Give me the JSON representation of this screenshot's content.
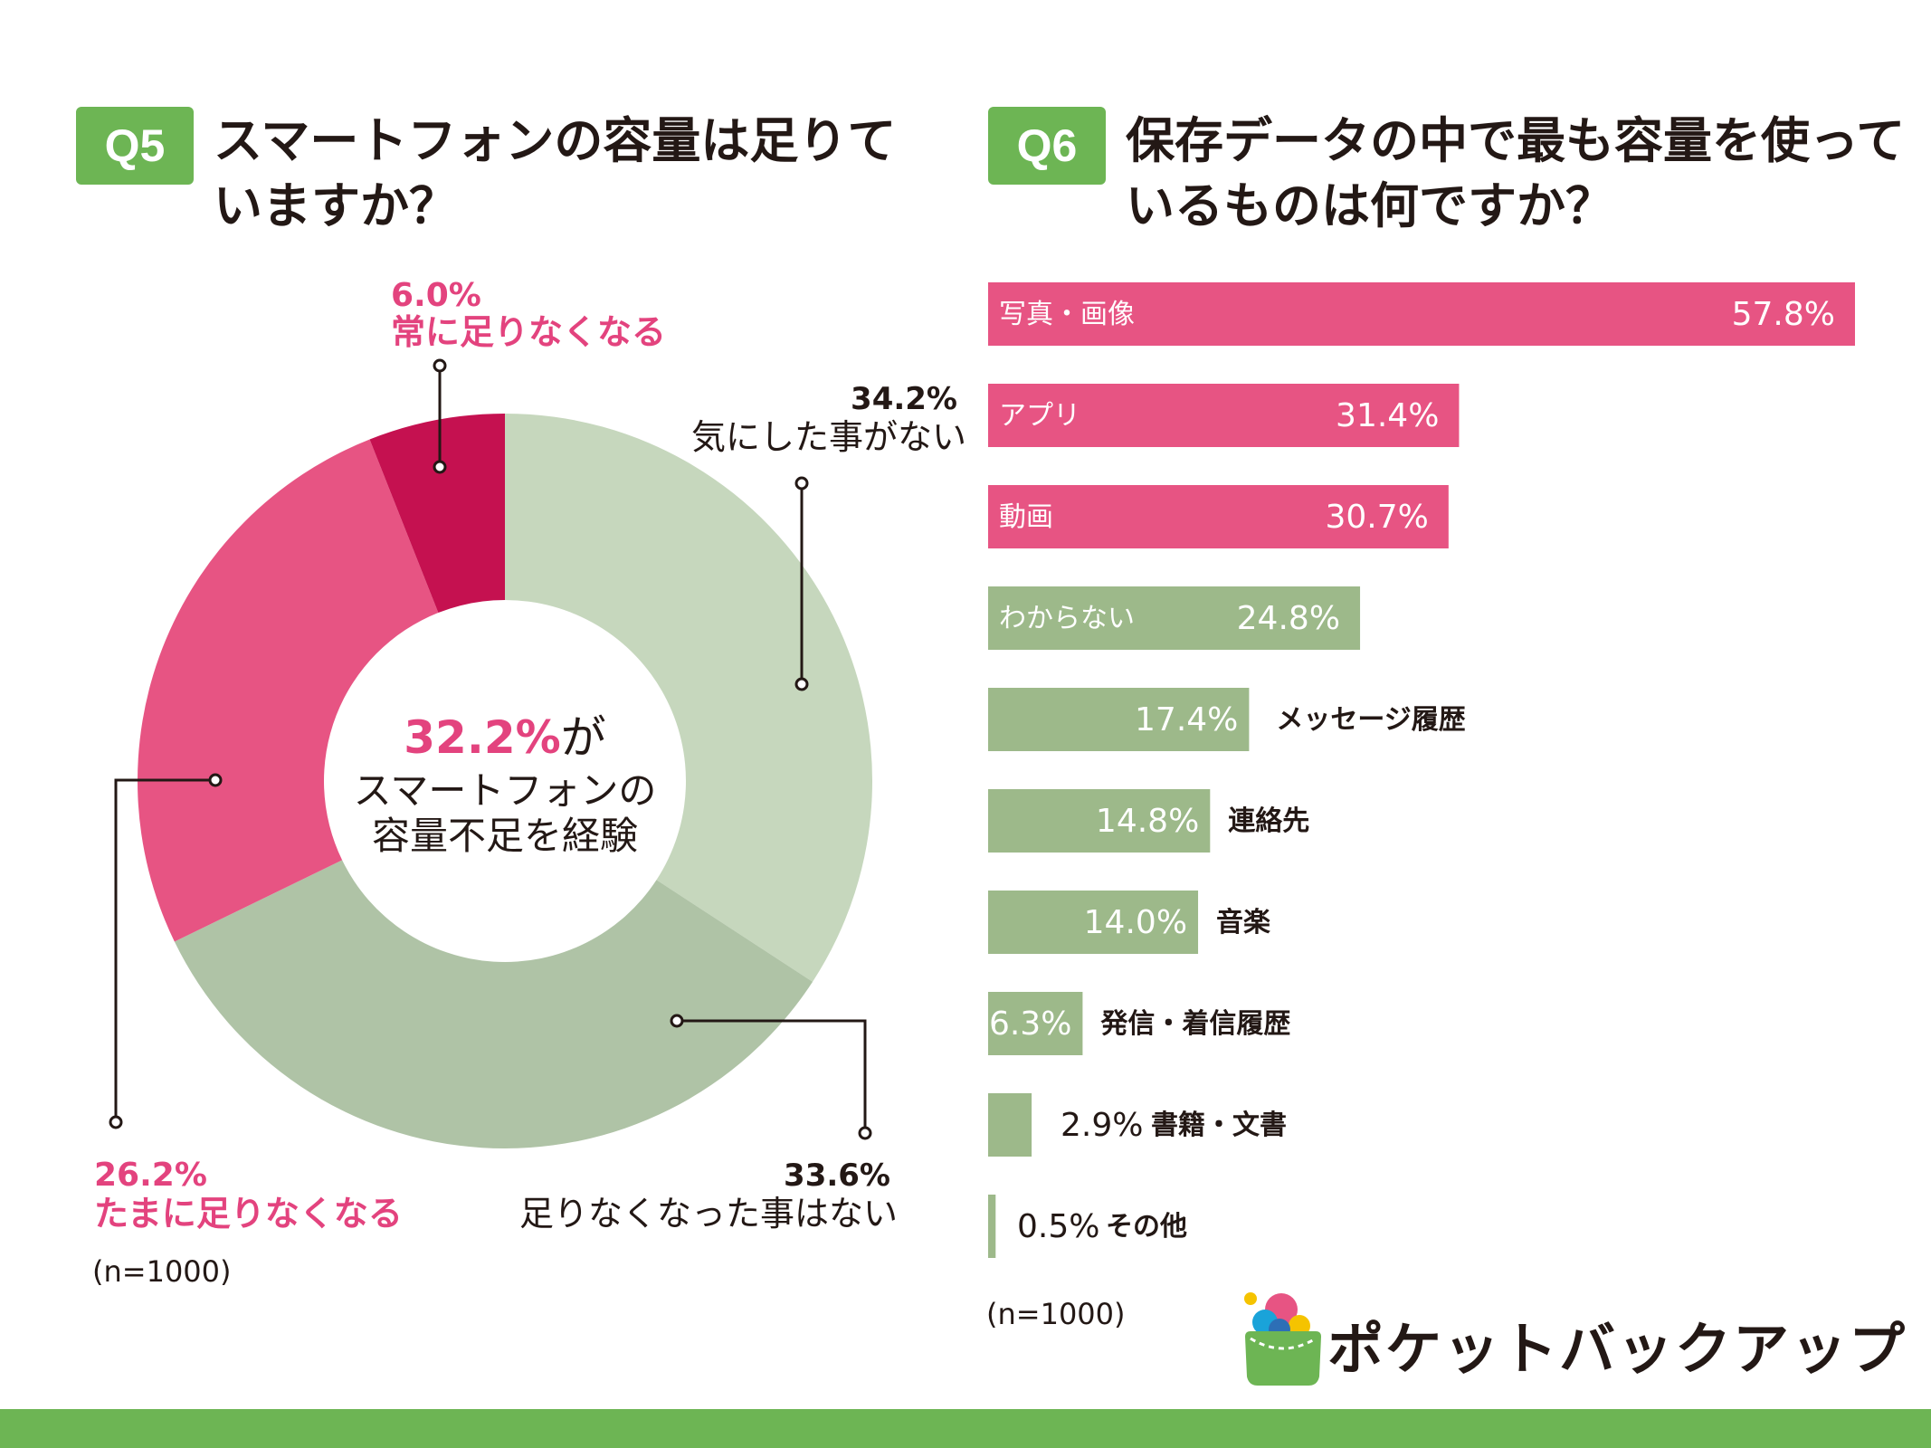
{
  "q5": {
    "badge": "Q5",
    "title_lines": [
      "スマートフォンの容量は足りて",
      "いますか？"
    ],
    "center_highlight": "32.2%",
    "center_suffix": "が",
    "center_lines": [
      "スマートフォンの",
      "容量不足を経験"
    ],
    "n_label": "(n=1000)"
  },
  "q6": {
    "badge": "Q6",
    "title_lines": [
      "保存データの中で最も容量を使って",
      "いるものは何ですか？"
    ],
    "n_label": "(n=1000)"
  },
  "brand": {
    "name": "ポケットバックアップ"
  },
  "colors": {
    "green_brand": "#6db554",
    "pink_bar": "#e75483",
    "pink_text": "#e3437e",
    "crimson": "#c51150",
    "green_bar": "#9db98a",
    "pie_light_green": "#c6d7bd",
    "pie_mid_green": "#afc3a6"
  },
  "chart_data": [
    {
      "type": "pie",
      "variant": "donut",
      "title": "スマートフォンの容量は足りていますか？",
      "unit": "%",
      "slices": [
        {
          "label": "気にした事がない",
          "value": 34.2,
          "color": "#c6d7bd",
          "label_color": "#231815"
        },
        {
          "label": "足りなくなった事はない",
          "value": 33.6,
          "color": "#afc3a6",
          "label_color": "#231815"
        },
        {
          "label": "たまに足りなくなる",
          "value": 26.2,
          "color": "#e75483",
          "label_color": "#e3437e"
        },
        {
          "label": "常に足りなくなる",
          "value": 6.0,
          "color": "#c51150",
          "label_color": "#e3437e"
        }
      ],
      "start_angle_deg": 0,
      "direction": "clockwise"
    },
    {
      "type": "bar",
      "orientation": "horizontal",
      "title": "保存データの中で最も容量を使っているものは何ですか？",
      "unit": "%",
      "categories": [
        "写真・画像",
        "アプリ",
        "動画",
        "わからない",
        "メッセージ履歴",
        "連絡先",
        "音楽",
        "発信・着信履歴",
        "書籍・文書",
        "その他"
      ],
      "values": [
        57.8,
        31.4,
        30.7,
        24.8,
        17.4,
        14.8,
        14.0,
        6.3,
        2.9,
        0.5
      ],
      "value_labels": [
        "57.8%",
        "31.4%",
        "30.7%",
        "24.8%",
        "17.4%",
        "14.8%",
        "14.0%",
        "6.3%",
        "2.9%",
        "0.5%"
      ],
      "bar_colors": [
        "#e75483",
        "#e75483",
        "#e75483",
        "#9db98a",
        "#9db98a",
        "#9db98a",
        "#9db98a",
        "#9db98a",
        "#9db98a",
        "#9db98a"
      ],
      "xlim": [
        0,
        57.8
      ]
    }
  ]
}
